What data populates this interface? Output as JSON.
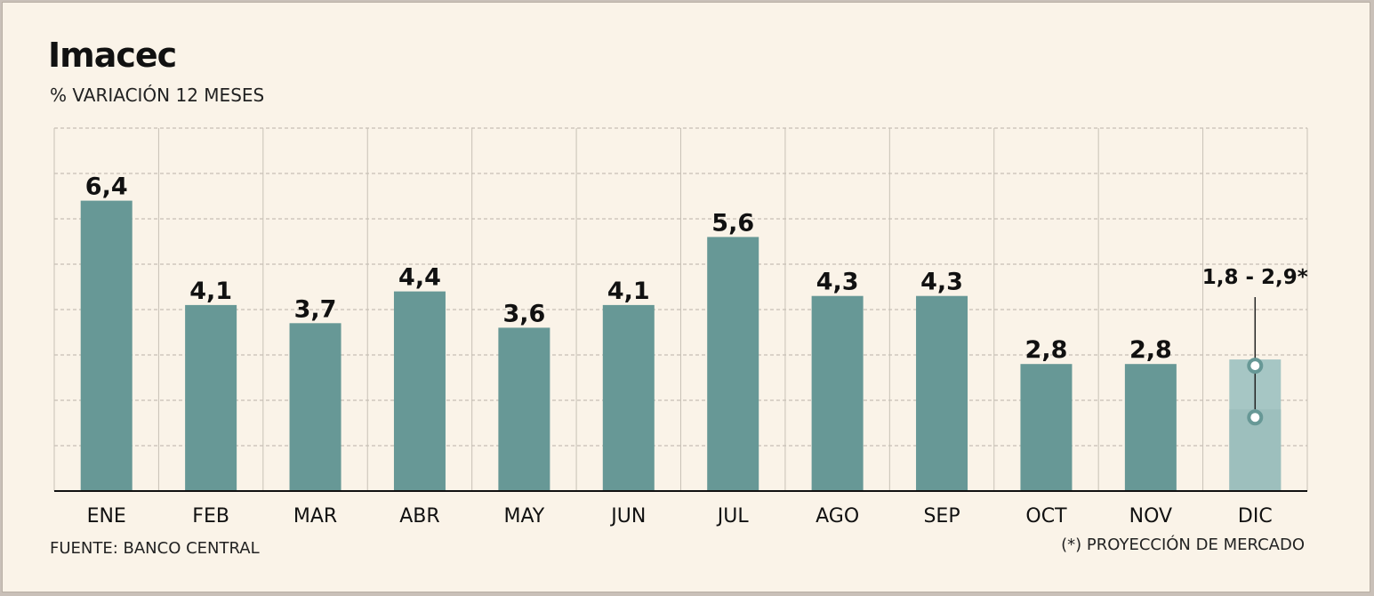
{
  "chart_data": {
    "type": "bar",
    "title": "Imacec",
    "subtitle": "% VARIACIÓN 12 MESES",
    "categories": [
      "ENE",
      "FEB",
      "MAR",
      "ABR",
      "MAY",
      "JUN",
      "JUL",
      "AGO",
      "SEP",
      "OCT",
      "NOV",
      "DIC"
    ],
    "values": [
      6.4,
      4.1,
      3.7,
      4.4,
      3.6,
      4.1,
      5.6,
      4.3,
      4.3,
      2.8,
      2.8,
      null
    ],
    "value_labels": [
      "6,4",
      "4,1",
      "3,7",
      "4,4",
      "3,6",
      "4,1",
      "5,6",
      "4,3",
      "4,3",
      "2,8",
      "2,8",
      ""
    ],
    "projection": {
      "category": "DIC",
      "low": 1.8,
      "high": 2.9,
      "label": "1,8 - 2,9*"
    },
    "ylim": [
      0,
      8
    ],
    "grid": true,
    "colors": {
      "bar": "#679896",
      "projection_bar": "#a6c6c4",
      "projection_marker": "#679896"
    }
  },
  "source": "FUENTE: BANCO CENTRAL",
  "note": "(*) PROYECCIÓN DE MERCADO"
}
